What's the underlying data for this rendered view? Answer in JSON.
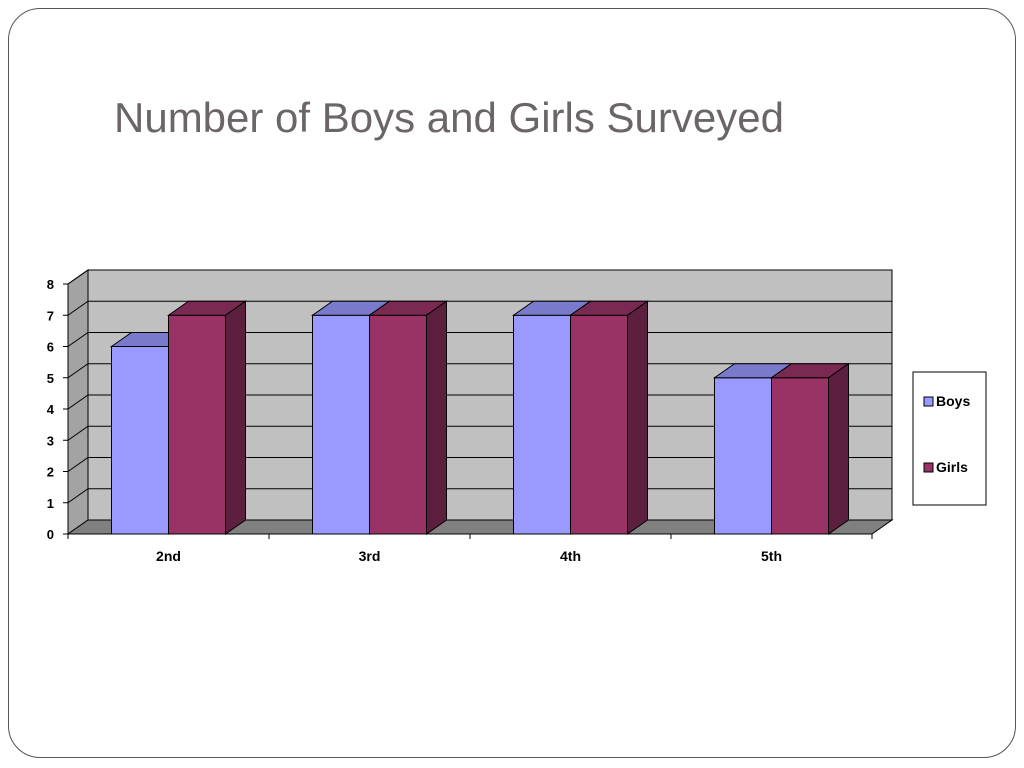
{
  "slide": {
    "title": "Number of Boys and Girls Surveyed"
  },
  "chart_data": {
    "type": "bar",
    "title": "Number of Boys and Girls Surveyed",
    "categories": [
      "2nd",
      "3rd",
      "4th",
      "5th"
    ],
    "series": [
      {
        "name": "Boys",
        "values": [
          6,
          7,
          7,
          5
        ],
        "color": "#9999ff"
      },
      {
        "name": "Girls",
        "values": [
          7,
          7,
          7,
          5
        ],
        "color": "#993366"
      }
    ],
    "y_ticks": [
      "0",
      "1",
      "2",
      "3",
      "4",
      "5",
      "6",
      "7",
      "8"
    ],
    "ylim": [
      0,
      8
    ],
    "grid": true,
    "style": "3d-clustered-column",
    "wall_color": "#c0c0c0",
    "floor_color": "#808080",
    "legend_position": "right"
  }
}
